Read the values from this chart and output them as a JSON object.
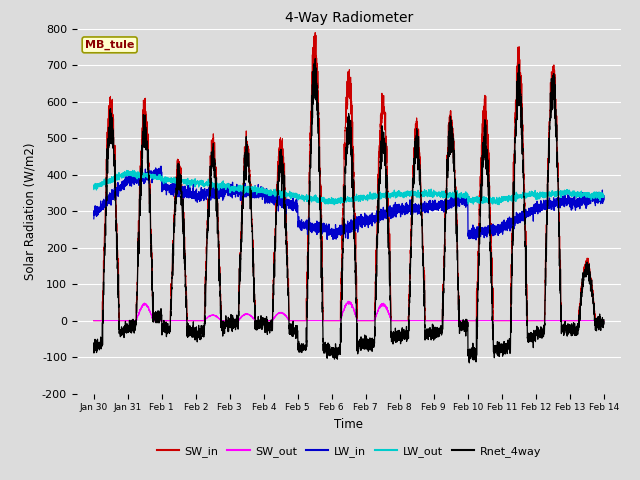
{
  "title": "4-Way Radiometer",
  "xlabel": "Time",
  "ylabel": "Solar Radiation (W/m2)",
  "ylim": [
    -200,
    800
  ],
  "yticks": [
    -200,
    -100,
    0,
    100,
    200,
    300,
    400,
    500,
    600,
    700,
    800
  ],
  "station_label": "MB_tule",
  "bg_color": "#dcdcdc",
  "legend_entries": [
    "SW_in",
    "SW_out",
    "LW_in",
    "LW_out",
    "Rnet_4way"
  ],
  "legend_colors": [
    "#cc0000",
    "#ff00ff",
    "#0000cc",
    "#00cccc",
    "#000000"
  ],
  "line_colors": {
    "SW_in": "#cc0000",
    "SW_out": "#ff00ff",
    "LW_in": "#0000cc",
    "LW_out": "#00cccc",
    "Rnet_4way": "#000000"
  },
  "xtick_labels": [
    "Jan 30",
    "Jan 31",
    "Feb 1",
    "Feb 2",
    "Feb 3",
    "Feb 4",
    "Feb 5",
    "Feb 6",
    "Feb 7",
    "Feb 8",
    "Feb 9",
    "Feb 10",
    "Feb 11",
    "Feb 12",
    "Feb 13",
    "Feb 14"
  ],
  "xtick_positions": [
    0,
    1,
    2,
    3,
    4,
    5,
    6,
    7,
    8,
    9,
    10,
    11,
    12,
    13,
    14,
    15
  ]
}
